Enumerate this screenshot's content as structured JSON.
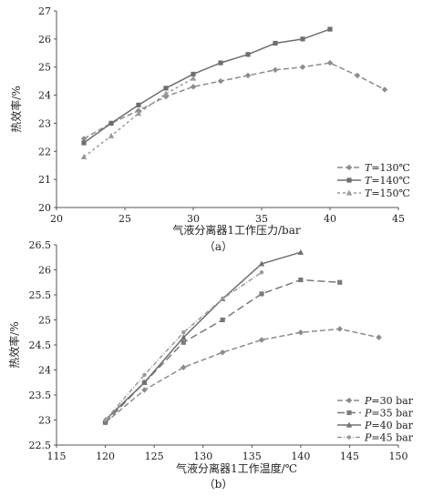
{
  "chart_data": [
    {
      "type": "line",
      "caption": "（a）",
      "xlabel": "气液分离器1工作压力/bar",
      "ylabel": "热效率/%",
      "xlim": [
        20,
        45
      ],
      "ylim": [
        20,
        27
      ],
      "xticks": [
        "20",
        "25",
        "30",
        "35",
        "40",
        "45"
      ],
      "yticks": [
        "20",
        "21",
        "22",
        "23",
        "24",
        "25",
        "26",
        "27"
      ],
      "grid": false,
      "legend_position": "bottom-right",
      "series": [
        {
          "name": "T=130℃",
          "label_var": "T",
          "label_rest": "=130℃",
          "color": "#8c8c8c",
          "dash": "6,3",
          "marker": "diamond",
          "x": [
            22,
            24,
            26,
            28,
            30,
            32,
            34,
            36,
            38,
            40,
            42,
            44
          ],
          "y": [
            22.45,
            23.0,
            23.45,
            23.95,
            24.3,
            24.5,
            24.7,
            24.9,
            25.0,
            25.15,
            24.7,
            24.2
          ]
        },
        {
          "name": "T=140℃",
          "label_var": "T",
          "label_rest": "=140℃",
          "color": "#6e6e6e",
          "dash": "",
          "marker": "square",
          "x": [
            22,
            24,
            26,
            28,
            30,
            32,
            34,
            36,
            38,
            40
          ],
          "y": [
            22.3,
            23.0,
            23.65,
            24.25,
            24.75,
            25.15,
            25.45,
            25.85,
            26.0,
            26.35
          ]
        },
        {
          "name": "T=150℃",
          "label_var": "T",
          "label_rest": "=150℃",
          "color": "#9a9a9a",
          "dash": "3,3",
          "marker": "triangle",
          "x": [
            22,
            24,
            26,
            28,
            30
          ],
          "y": [
            21.8,
            22.55,
            23.35,
            24.05,
            24.6
          ]
        }
      ]
    },
    {
      "type": "line",
      "caption": "（b）",
      "xlabel": "气液分离器1工作温度/℃",
      "ylabel": "热效率/%",
      "xlim": [
        115,
        150
      ],
      "ylim": [
        22.5,
        26.5
      ],
      "xticks": [
        "115",
        "120",
        "125",
        "130",
        "135",
        "140",
        "145",
        "150"
      ],
      "yticks": [
        "22.5",
        "23",
        "23.5",
        "24",
        "24.5",
        "25",
        "25.5",
        "26",
        "26.5"
      ],
      "grid": false,
      "legend_position": "bottom-right",
      "series": [
        {
          "name": "P=30 bar",
          "label_var": "P",
          "label_rest": "=30 bar",
          "color": "#8c8c8c",
          "dash": "6,3",
          "marker": "diamond",
          "x": [
            120,
            124,
            128,
            132,
            136,
            140,
            144,
            148
          ],
          "y": [
            22.95,
            23.6,
            24.05,
            24.35,
            24.6,
            24.75,
            24.82,
            24.65
          ]
        },
        {
          "name": "P=35 bar",
          "label_var": "P",
          "label_rest": "=35 bar",
          "color": "#7a7a7a",
          "dash": "8,4",
          "marker": "square",
          "x": [
            120,
            124,
            128,
            132,
            136,
            140,
            144
          ],
          "y": [
            22.95,
            23.75,
            24.55,
            25.0,
            25.52,
            25.8,
            25.75
          ]
        },
        {
          "name": "P=40 bar",
          "label_var": "P",
          "label_rest": "=40 bar",
          "color": "#707070",
          "dash": "",
          "marker": "triangle",
          "x": [
            120,
            124,
            128,
            132,
            136,
            140
          ],
          "y": [
            23.0,
            23.75,
            24.65,
            25.42,
            26.12,
            26.35
          ]
        },
        {
          "name": "P=45 bar",
          "label_var": "P",
          "label_rest": "=45 bar",
          "color": "#9a9a9a",
          "dash": "5,2,1,2",
          "marker": "dot",
          "x": [
            120,
            124,
            128,
            132,
            136
          ],
          "y": [
            23.0,
            23.9,
            24.75,
            25.42,
            25.95
          ]
        }
      ]
    }
  ]
}
